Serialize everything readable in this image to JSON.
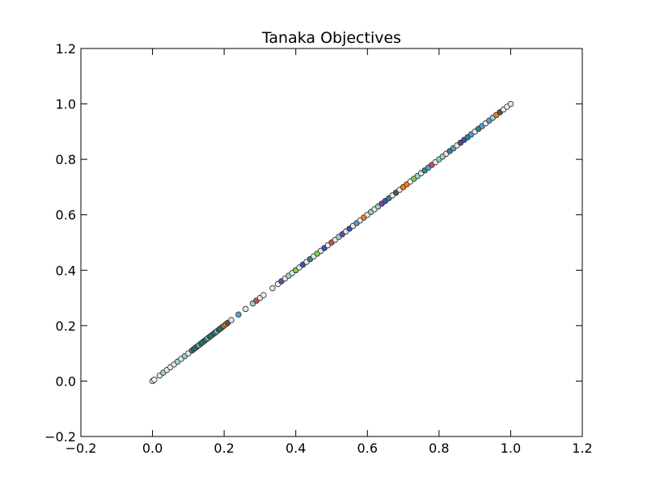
{
  "chart_data": {
    "type": "scatter",
    "title": "Tanaka Objectives",
    "xlabel": "",
    "ylabel": "",
    "xlim": [
      -0.2,
      1.2
    ],
    "ylim": [
      -0.2,
      1.2
    ],
    "xticks": [
      "−0.2",
      "0.0",
      "0.2",
      "0.4",
      "0.6",
      "0.8",
      "1.0",
      "1.2"
    ],
    "yticks": [
      "−0.2",
      "0.0",
      "0.2",
      "0.4",
      "0.6",
      "0.8",
      "1.0",
      "1.2"
    ],
    "grid": false,
    "point_colors": [
      "#e8e8e8",
      "#f2f2f2",
      "#8fd3d8",
      "#2e8b8b",
      "#1f6f6f",
      "#ff7f0e",
      "#3a53c4",
      "#7a3fb0",
      "#7fd34e",
      "#4fa3d8",
      "#9ad6d0",
      "#ffffff",
      "#555555",
      "#d05050"
    ],
    "series": [
      {
        "points": [
          [
            0.0,
            0.0,
            0
          ],
          [
            0.005,
            0.005,
            1
          ],
          [
            0.02,
            0.02,
            0
          ],
          [
            0.03,
            0.03,
            10
          ],
          [
            0.04,
            0.04,
            0
          ],
          [
            0.05,
            0.05,
            1
          ],
          [
            0.06,
            0.06,
            0
          ],
          [
            0.07,
            0.07,
            10
          ],
          [
            0.08,
            0.08,
            0
          ],
          [
            0.09,
            0.09,
            2
          ],
          [
            0.1,
            0.1,
            0
          ],
          [
            0.11,
            0.11,
            3
          ],
          [
            0.115,
            0.115,
            4
          ],
          [
            0.12,
            0.12,
            3
          ],
          [
            0.125,
            0.125,
            4
          ],
          [
            0.13,
            0.13,
            2
          ],
          [
            0.135,
            0.135,
            4
          ],
          [
            0.14,
            0.14,
            3
          ],
          [
            0.145,
            0.145,
            4
          ],
          [
            0.15,
            0.15,
            3
          ],
          [
            0.155,
            0.155,
            2
          ],
          [
            0.16,
            0.16,
            4
          ],
          [
            0.165,
            0.165,
            3
          ],
          [
            0.17,
            0.17,
            4
          ],
          [
            0.175,
            0.175,
            3
          ],
          [
            0.18,
            0.18,
            2
          ],
          [
            0.185,
            0.185,
            4
          ],
          [
            0.19,
            0.19,
            3
          ],
          [
            0.195,
            0.195,
            4
          ],
          [
            0.2,
            0.2,
            5
          ],
          [
            0.205,
            0.205,
            5
          ],
          [
            0.21,
            0.21,
            12
          ],
          [
            0.22,
            0.22,
            0
          ],
          [
            0.24,
            0.24,
            9
          ],
          [
            0.26,
            0.26,
            0
          ],
          [
            0.28,
            0.28,
            10
          ],
          [
            0.29,
            0.29,
            13
          ],
          [
            0.3,
            0.3,
            0
          ],
          [
            0.31,
            0.31,
            1
          ],
          [
            0.335,
            0.335,
            0
          ],
          [
            0.35,
            0.35,
            1
          ],
          [
            0.36,
            0.36,
            7
          ],
          [
            0.37,
            0.37,
            0
          ],
          [
            0.38,
            0.38,
            10
          ],
          [
            0.39,
            0.39,
            0
          ],
          [
            0.4,
            0.4,
            8
          ],
          [
            0.41,
            0.41,
            0
          ],
          [
            0.42,
            0.42,
            6
          ],
          [
            0.43,
            0.43,
            0
          ],
          [
            0.44,
            0.44,
            3
          ],
          [
            0.45,
            0.45,
            0
          ],
          [
            0.46,
            0.46,
            8
          ],
          [
            0.47,
            0.47,
            0
          ],
          [
            0.48,
            0.48,
            6
          ],
          [
            0.49,
            0.49,
            1
          ],
          [
            0.5,
            0.5,
            13
          ],
          [
            0.51,
            0.51,
            0
          ],
          [
            0.52,
            0.52,
            10
          ],
          [
            0.53,
            0.53,
            7
          ],
          [
            0.54,
            0.54,
            0
          ],
          [
            0.55,
            0.55,
            6
          ],
          [
            0.56,
            0.56,
            0
          ],
          [
            0.57,
            0.57,
            9
          ],
          [
            0.58,
            0.58,
            0
          ],
          [
            0.59,
            0.59,
            5
          ],
          [
            0.6,
            0.6,
            0
          ],
          [
            0.61,
            0.61,
            10
          ],
          [
            0.62,
            0.62,
            0
          ],
          [
            0.63,
            0.63,
            2
          ],
          [
            0.64,
            0.64,
            7
          ],
          [
            0.65,
            0.65,
            6
          ],
          [
            0.66,
            0.66,
            3
          ],
          [
            0.67,
            0.67,
            0
          ],
          [
            0.68,
            0.68,
            12
          ],
          [
            0.69,
            0.69,
            0
          ],
          [
            0.7,
            0.7,
            5
          ],
          [
            0.71,
            0.71,
            5
          ],
          [
            0.72,
            0.72,
            1
          ],
          [
            0.73,
            0.73,
            8
          ],
          [
            0.74,
            0.74,
            2
          ],
          [
            0.75,
            0.75,
            0
          ],
          [
            0.76,
            0.76,
            3
          ],
          [
            0.77,
            0.77,
            9
          ],
          [
            0.78,
            0.78,
            13
          ],
          [
            0.79,
            0.79,
            0
          ],
          [
            0.8,
            0.8,
            2
          ],
          [
            0.81,
            0.81,
            10
          ],
          [
            0.82,
            0.82,
            0
          ],
          [
            0.83,
            0.83,
            3
          ],
          [
            0.84,
            0.84,
            9
          ],
          [
            0.85,
            0.85,
            0
          ],
          [
            0.86,
            0.86,
            12
          ],
          [
            0.87,
            0.87,
            6
          ],
          [
            0.88,
            0.88,
            3
          ],
          [
            0.89,
            0.89,
            9
          ],
          [
            0.9,
            0.9,
            0
          ],
          [
            0.91,
            0.91,
            3
          ],
          [
            0.92,
            0.92,
            9
          ],
          [
            0.93,
            0.93,
            0
          ],
          [
            0.94,
            0.94,
            9
          ],
          [
            0.95,
            0.95,
            2
          ],
          [
            0.96,
            0.96,
            5
          ],
          [
            0.97,
            0.97,
            12
          ],
          [
            0.98,
            0.98,
            0
          ],
          [
            0.99,
            0.99,
            1
          ],
          [
            1.0,
            1.0,
            0
          ]
        ]
      }
    ]
  }
}
